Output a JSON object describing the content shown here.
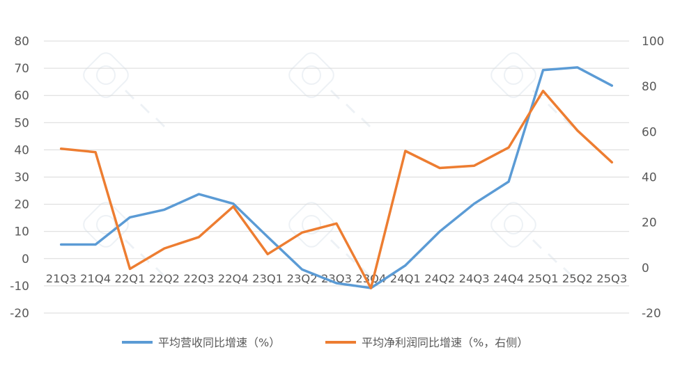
{
  "chart_data": {
    "type": "line",
    "categories": [
      "21Q3",
      "21Q4",
      "22Q1",
      "22Q2",
      "22Q3",
      "22Q4",
      "23Q1",
      "23Q2",
      "23Q3",
      "23Q4",
      "24Q1",
      "24Q2",
      "24Q3",
      "24Q4",
      "25Q1",
      "25Q2",
      "25Q3"
    ],
    "series": [
      {
        "name": "平均营收同比增速（%）",
        "axis": "left",
        "color": "#5B9BD5",
        "values": [
          5.2,
          5.2,
          15.2,
          18.0,
          23.7,
          20.2,
          8.0,
          -4.0,
          -9.0,
          -10.8,
          -2.5,
          10.0,
          20.2,
          28.3,
          69.3,
          70.3,
          63.6
        ]
      },
      {
        "name": "平均净利润同比增速（%，右侧）",
        "axis": "right",
        "color": "#ED7D31",
        "values": [
          52.5,
          51.0,
          -0.5,
          8.5,
          13.5,
          27.0,
          6.0,
          15.5,
          19.5,
          -9.0,
          51.5,
          44.0,
          45.0,
          53.0,
          78.0,
          60.5,
          46.5
        ]
      }
    ],
    "y_left": {
      "ticks": [
        "80",
        "70",
        "60",
        "50",
        "40",
        "30",
        "20",
        "10",
        "0",
        "-10",
        "-20"
      ],
      "ylim": [
        -20,
        80
      ]
    },
    "y_right": {
      "ticks": [
        "100",
        "80",
        "60",
        "40",
        "20",
        "0",
        "-20"
      ],
      "ylim": [
        -20,
        100
      ]
    },
    "grid": true,
    "legend_position": "bottom"
  }
}
